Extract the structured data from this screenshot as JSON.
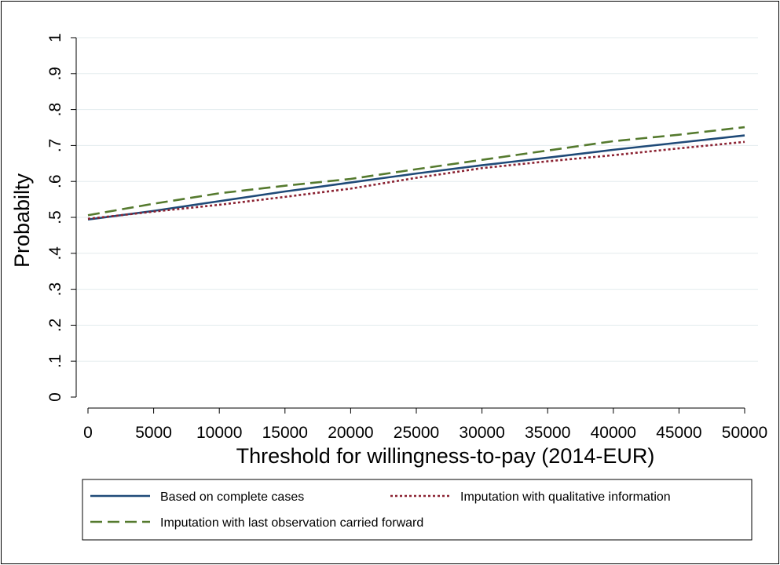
{
  "chart_data": {
    "type": "line",
    "title": "",
    "xlabel": "Threshold for willingness-to-pay (2014-EUR)",
    "ylabel": "Probabilty",
    "xlim": [
      0,
      50000
    ],
    "ylim": [
      0,
      1
    ],
    "x_ticks": [
      0,
      5000,
      10000,
      15000,
      20000,
      25000,
      30000,
      35000,
      40000,
      45000,
      50000
    ],
    "x_tick_labels": [
      "0",
      "5000",
      "10000",
      "15000",
      "20000",
      "25000",
      "30000",
      "35000",
      "40000",
      "45000",
      "50000"
    ],
    "y_ticks": [
      0,
      0.1,
      0.2,
      0.3,
      0.4,
      0.5,
      0.6,
      0.7,
      0.8,
      0.9,
      1
    ],
    "y_tick_labels": [
      "0",
      ".1",
      ".2",
      ".3",
      ".4",
      ".5",
      ".6",
      ".7",
      ".8",
      ".9",
      "1"
    ],
    "grid": true,
    "legend_position": "bottom",
    "x": [
      0,
      5000,
      10000,
      15000,
      20000,
      25000,
      30000,
      35000,
      40000,
      45000,
      50000
    ],
    "series": [
      {
        "name": "Based on complete cases",
        "color": "#1f4a78",
        "style": "solid",
        "values": [
          0.494,
          0.518,
          0.545,
          0.572,
          0.597,
          0.622,
          0.645,
          0.666,
          0.688,
          0.708,
          0.728
        ]
      },
      {
        "name": "Imputation with qualitative information",
        "color": "#8b2232",
        "style": "dotted",
        "values": [
          0.496,
          0.516,
          0.535,
          0.557,
          0.58,
          0.61,
          0.637,
          0.656,
          0.673,
          0.692,
          0.71
        ]
      },
      {
        "name": "Imputation with last observation carried forward",
        "color": "#557a2e",
        "style": "dashed",
        "values": [
          0.506,
          0.538,
          0.567,
          0.588,
          0.607,
          0.634,
          0.66,
          0.686,
          0.712,
          0.73,
          0.751
        ]
      }
    ]
  }
}
